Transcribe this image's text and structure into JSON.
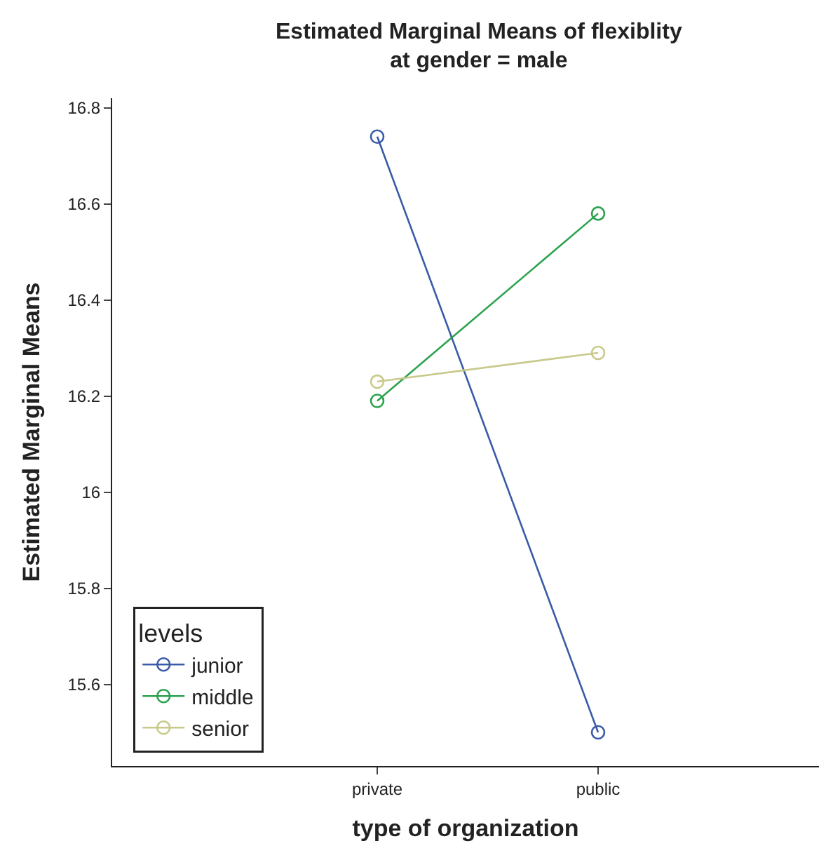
{
  "chart_data": {
    "type": "line",
    "title": "Estimated Marginal Means of flexiblity\nat gender = male",
    "xlabel": "type of organization",
    "ylabel": "Estimated Marginal Means",
    "legend_title": "levels",
    "categories": [
      "private",
      "public"
    ],
    "series": [
      {
        "name": "junior",
        "color": "#3a5ba8",
        "values": [
          16.74,
          15.5
        ]
      },
      {
        "name": "middle",
        "color": "#2ca24f",
        "values": [
          16.19,
          16.58
        ]
      },
      {
        "name": "senior",
        "color": "#c8c98a",
        "values": [
          16.23,
          16.29
        ]
      }
    ],
    "ylim": [
      15.43,
      16.82
    ],
    "yticks": [
      15.6,
      15.8,
      16,
      16.2,
      16.4,
      16.6,
      16.8
    ],
    "grid": false,
    "legend": "bottom left",
    "marker": "circle",
    "line_style": "solid"
  }
}
